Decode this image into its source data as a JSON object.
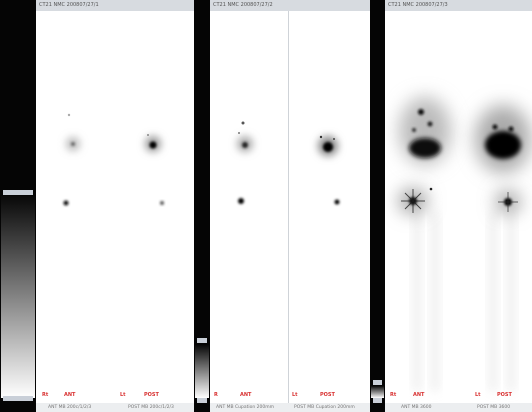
{
  "panels": [
    {
      "header": "CT21 NMC 200807/27/1",
      "view_labels": {
        "r": "Rt",
        "ant": "ANT",
        "l": "Lt",
        "post": "POST"
      },
      "footer": {
        "ant": "ANT MB 200c/1/2/3",
        "post": "POST MB 200c/1/2/3"
      }
    },
    {
      "header": "CT21 NMC 200807/27/2",
      "view_labels": {
        "r": "R",
        "ant": "ANT",
        "l": "Lt",
        "post": "POST"
      },
      "footer": {
        "ant": "ANT MB Cupation 200mm",
        "post": "POST MB Cupation 200mm"
      }
    },
    {
      "header": "CT21 NMC 200807/27/3",
      "view_labels": {
        "r": "Rt",
        "ant": "ANT",
        "l": "Lt",
        "post": "POST"
      },
      "footer": {
        "ant": "ANT MB 3600",
        "post": "POST MB 3600"
      }
    }
  ],
  "colors": {
    "scale_bar": "#050505",
    "label_red": "#d83030",
    "header_bg": "#d7dbe0"
  }
}
